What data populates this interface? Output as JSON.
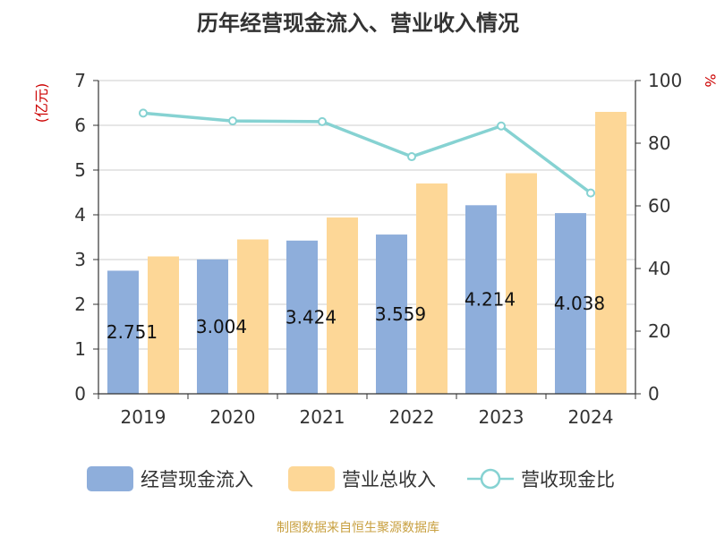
{
  "chart_data": {
    "type": "bar",
    "title": "历年经营现金流入、营业收入情况",
    "categories": [
      "2019",
      "2020",
      "2021",
      "2022",
      "2023",
      "2024"
    ],
    "series": [
      {
        "name": "经营现金流入",
        "kind": "bar",
        "axis": "left",
        "color": "#8eaedb",
        "values": [
          2.751,
          3.004,
          3.424,
          3.559,
          4.214,
          4.038
        ],
        "show_labels": true
      },
      {
        "name": "营业总收入",
        "kind": "bar",
        "axis": "left",
        "color": "#fdd797",
        "values": [
          3.07,
          3.45,
          3.94,
          4.7,
          4.93,
          6.3
        ],
        "show_labels": false
      },
      {
        "name": "营收现金比",
        "kind": "line",
        "axis": "right",
        "color": "#86d2d2",
        "values": [
          89.6,
          87.1,
          86.9,
          75.7,
          85.5,
          64.1
        ],
        "show_labels": false
      }
    ],
    "ylabel_left": "(亿元)",
    "ylabel_right": "%",
    "ylim_left": [
      0,
      7
    ],
    "ylim_right": [
      0,
      100
    ],
    "yticks_left": [
      "0",
      "1",
      "2",
      "3",
      "4",
      "5",
      "6",
      "7"
    ],
    "yticks_right": [
      "0",
      "20",
      "40",
      "60",
      "80",
      "100"
    ],
    "grid": true,
    "legend_position": "bottom"
  },
  "source": "制图数据来自恒生聚源数据库"
}
